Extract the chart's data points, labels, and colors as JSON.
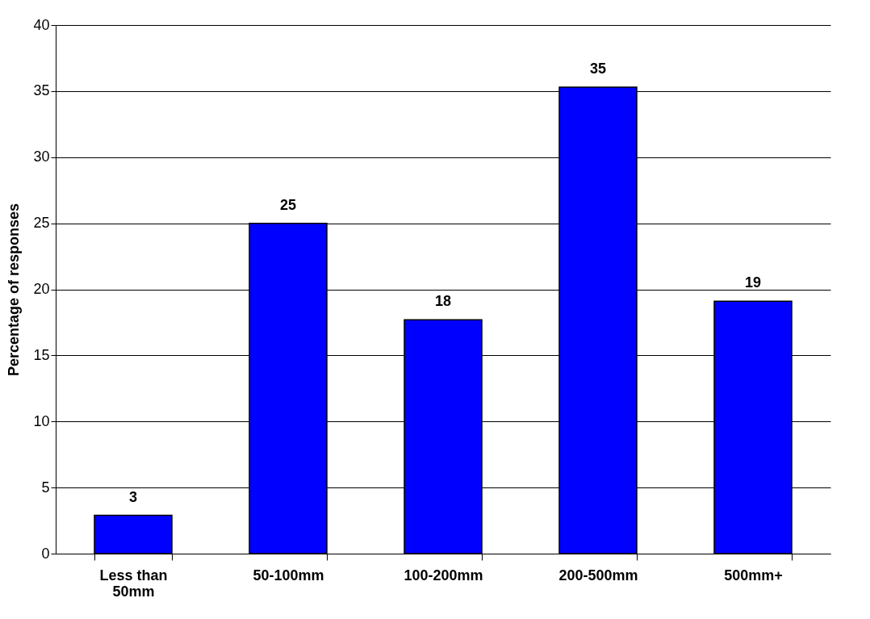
{
  "chart_data": {
    "type": "bar",
    "ylabel": "Percentage of responses",
    "categories": [
      "Less than 50mm",
      "50-100mm",
      "100-200mm",
      "200-500mm",
      "500mm+"
    ],
    "values": [
      2.9,
      25,
      17.7,
      35.3,
      19.1
    ],
    "value_labels": [
      "3",
      "25",
      "18",
      "35",
      "19"
    ],
    "color": "#0000ff",
    "ylim": [
      0,
      40
    ],
    "yticks": [
      0,
      5,
      10,
      15,
      20,
      25,
      30,
      35,
      40
    ],
    "grid": "y"
  }
}
